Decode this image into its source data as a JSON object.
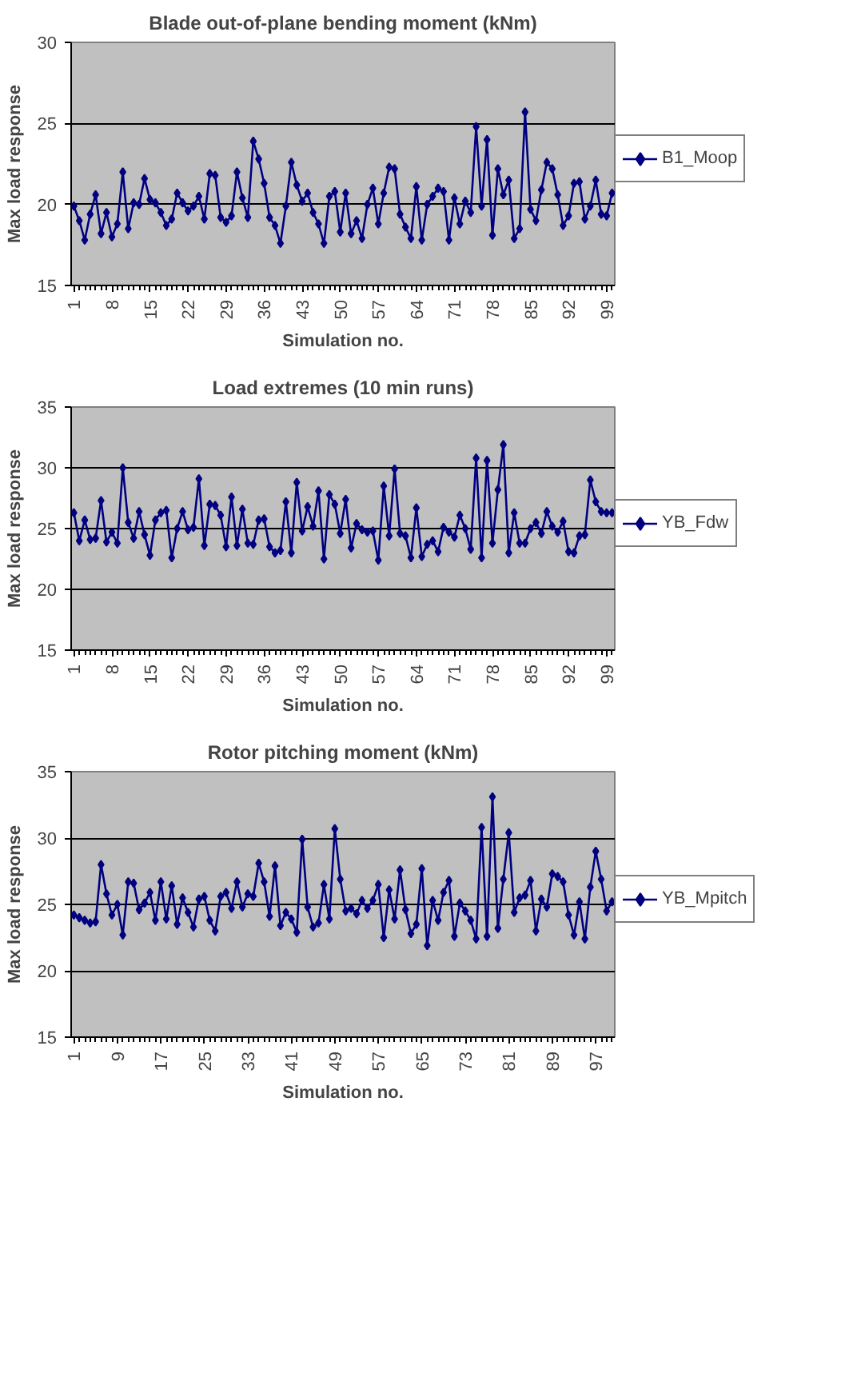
{
  "chart_data": [
    {
      "type": "line",
      "title": "Blade out-of-plane bending moment (kNm)",
      "xlabel": "Simulation no.",
      "ylabel": "Max load response",
      "ylim": [
        15,
        30
      ],
      "yticks": [
        15,
        20,
        25,
        30
      ],
      "grid": "y",
      "legend": "right",
      "marker": "diamond",
      "categories": [
        "1",
        null,
        null,
        null,
        null,
        null,
        null,
        "8",
        null,
        null,
        null,
        null,
        null,
        null,
        "15",
        null,
        null,
        null,
        null,
        null,
        null,
        "22",
        null,
        null,
        null,
        null,
        null,
        null,
        "29",
        null,
        null,
        null,
        null,
        null,
        null,
        "36",
        null,
        null,
        null,
        null,
        null,
        null,
        "43",
        null,
        null,
        null,
        null,
        null,
        null,
        "50",
        null,
        null,
        null,
        null,
        null,
        null,
        "57",
        null,
        null,
        null,
        null,
        null,
        null,
        "64",
        null,
        null,
        null,
        null,
        null,
        null,
        "71",
        null,
        null,
        null,
        null,
        null,
        null,
        "78",
        null,
        null,
        null,
        null,
        null,
        null,
        "85",
        null,
        null,
        null,
        null,
        null,
        null,
        "92",
        null,
        null,
        null,
        null,
        null,
        null,
        "99",
        null
      ],
      "series": [
        {
          "name": "B1_Moop",
          "color": "#000080",
          "values": [
            19.9,
            19.0,
            17.8,
            19.4,
            20.6,
            18.2,
            19.5,
            18.0,
            18.8,
            22.0,
            18.5,
            20.1,
            20.0,
            21.6,
            20.3,
            20.1,
            19.5,
            18.7,
            19.1,
            20.7,
            20.1,
            19.6,
            19.9,
            20.5,
            19.1,
            21.9,
            21.8,
            19.2,
            18.9,
            19.3,
            22.0,
            20.4,
            19.2,
            23.9,
            22.8,
            21.3,
            19.2,
            18.7,
            17.6,
            19.9,
            22.6,
            21.2,
            20.2,
            20.7,
            19.5,
            18.8,
            17.6,
            20.5,
            20.8,
            18.3,
            20.7,
            18.2,
            19.0,
            17.9,
            20.0,
            21.0,
            18.8,
            20.7,
            22.3,
            22.2,
            19.4,
            18.6,
            17.9,
            21.1,
            17.8,
            20.0,
            20.5,
            21.0,
            20.8,
            17.8,
            20.4,
            18.8,
            20.2,
            19.5,
            24.8,
            19.9,
            24.0,
            18.1,
            22.2,
            20.6,
            21.5,
            17.9,
            18.5,
            25.7,
            19.7,
            19.0,
            20.9,
            22.6,
            22.2,
            20.6,
            18.7,
            19.3,
            21.3,
            21.4,
            19.1,
            19.9,
            21.5,
            19.4,
            19.3,
            20.7
          ]
        }
      ]
    },
    {
      "type": "line",
      "title": "Load extremes (10 min runs)",
      "xlabel": "Simulation no.",
      "ylabel": "Max load response",
      "ylim": [
        15,
        35
      ],
      "yticks": [
        15,
        20,
        25,
        30,
        35
      ],
      "grid": "y",
      "legend": "right",
      "marker": "diamond",
      "categories": [
        "1",
        null,
        null,
        null,
        null,
        null,
        null,
        "8",
        null,
        null,
        null,
        null,
        null,
        null,
        "15",
        null,
        null,
        null,
        null,
        null,
        null,
        "22",
        null,
        null,
        null,
        null,
        null,
        null,
        "29",
        null,
        null,
        null,
        null,
        null,
        null,
        "36",
        null,
        null,
        null,
        null,
        null,
        null,
        "43",
        null,
        null,
        null,
        null,
        null,
        null,
        "50",
        null,
        null,
        null,
        null,
        null,
        null,
        "57",
        null,
        null,
        null,
        null,
        null,
        null,
        "64",
        null,
        null,
        null,
        null,
        null,
        null,
        "71",
        null,
        null,
        null,
        null,
        null,
        null,
        "78",
        null,
        null,
        null,
        null,
        null,
        null,
        "85",
        null,
        null,
        null,
        null,
        null,
        null,
        "92",
        null,
        null,
        null,
        null,
        null,
        null,
        "99",
        null
      ],
      "series": [
        {
          "name": "YB_Fdw",
          "color": "#000080",
          "values": [
            26.3,
            24.0,
            25.7,
            24.1,
            24.2,
            27.3,
            23.9,
            24.7,
            23.8,
            30.0,
            25.5,
            24.2,
            26.4,
            24.5,
            22.8,
            25.7,
            26.3,
            26.5,
            22.6,
            25.0,
            26.4,
            24.9,
            25.1,
            29.1,
            23.6,
            27.0,
            26.9,
            26.1,
            23.5,
            27.6,
            23.6,
            26.6,
            23.8,
            23.7,
            25.7,
            25.8,
            23.5,
            23.0,
            23.2,
            27.2,
            23.0,
            28.8,
            24.8,
            26.8,
            25.2,
            28.1,
            22.5,
            27.8,
            27.0,
            24.6,
            27.4,
            23.4,
            25.4,
            24.9,
            24.7,
            24.8,
            22.4,
            28.5,
            24.4,
            29.9,
            24.6,
            24.4,
            22.6,
            26.7,
            22.7,
            23.7,
            24.0,
            23.1,
            25.1,
            24.7,
            24.3,
            26.1,
            25.0,
            23.3,
            30.8,
            22.6,
            30.6,
            23.8,
            28.2,
            31.9,
            23.0,
            26.3,
            23.8,
            23.8,
            25.0,
            25.5,
            24.6,
            26.4,
            25.2,
            24.7,
            25.6,
            23.1,
            23.0,
            24.4,
            24.5,
            29.0,
            27.2,
            26.4,
            26.3,
            26.3
          ]
        }
      ]
    },
    {
      "type": "line",
      "title": "Rotor pitching moment (kNm)",
      "xlabel": "Simulation no.",
      "ylabel": "Max load response",
      "ylim": [
        15,
        35
      ],
      "yticks": [
        15,
        20,
        25,
        30,
        35
      ],
      "grid": "y",
      "legend": "right",
      "marker": "diamond",
      "categories": [
        "1",
        null,
        null,
        null,
        null,
        null,
        null,
        null,
        "9",
        null,
        null,
        null,
        null,
        null,
        null,
        null,
        "17",
        null,
        null,
        null,
        null,
        null,
        null,
        null,
        "25",
        null,
        null,
        null,
        null,
        null,
        null,
        null,
        "33",
        null,
        null,
        null,
        null,
        null,
        null,
        null,
        "41",
        null,
        null,
        null,
        null,
        null,
        null,
        null,
        "49",
        null,
        null,
        null,
        null,
        null,
        null,
        null,
        "57",
        null,
        null,
        null,
        null,
        null,
        null,
        null,
        "65",
        null,
        null,
        null,
        null,
        null,
        null,
        null,
        "73",
        null,
        null,
        null,
        null,
        null,
        null,
        null,
        "81",
        null,
        null,
        null,
        null,
        null,
        null,
        null,
        "89",
        null,
        null,
        null,
        null,
        null,
        null,
        null,
        "97",
        null,
        null,
        null
      ],
      "series": [
        {
          "name": "YB_Mpitch",
          "color": "#000080",
          "values": [
            24.2,
            24.0,
            23.8,
            23.6,
            23.7,
            28.0,
            25.8,
            24.2,
            25.0,
            22.7,
            26.7,
            26.6,
            24.6,
            25.1,
            25.9,
            23.8,
            26.7,
            23.9,
            26.4,
            23.5,
            25.5,
            24.4,
            23.3,
            25.4,
            25.6,
            23.8,
            23.0,
            25.6,
            25.9,
            24.7,
            26.7,
            24.8,
            25.8,
            25.6,
            28.1,
            26.7,
            24.1,
            27.9,
            23.4,
            24.4,
            23.9,
            22.9,
            29.9,
            24.8,
            23.3,
            23.6,
            26.5,
            23.9,
            30.7,
            26.9,
            24.5,
            24.7,
            24.3,
            25.3,
            24.7,
            25.3,
            26.5,
            22.5,
            26.1,
            23.9,
            27.6,
            24.6,
            22.8,
            23.5,
            27.7,
            21.9,
            25.3,
            23.8,
            25.9,
            26.8,
            22.6,
            25.1,
            24.5,
            23.8,
            22.4,
            30.8,
            22.6,
            33.1,
            23.2,
            26.9,
            30.4,
            24.4,
            25.5,
            25.7,
            26.8,
            23.0,
            25.4,
            24.8,
            27.3,
            27.1,
            26.7,
            24.2,
            22.7,
            25.2,
            22.4,
            26.3,
            29.0,
            26.9,
            24.5,
            25.2
          ]
        }
      ]
    }
  ]
}
